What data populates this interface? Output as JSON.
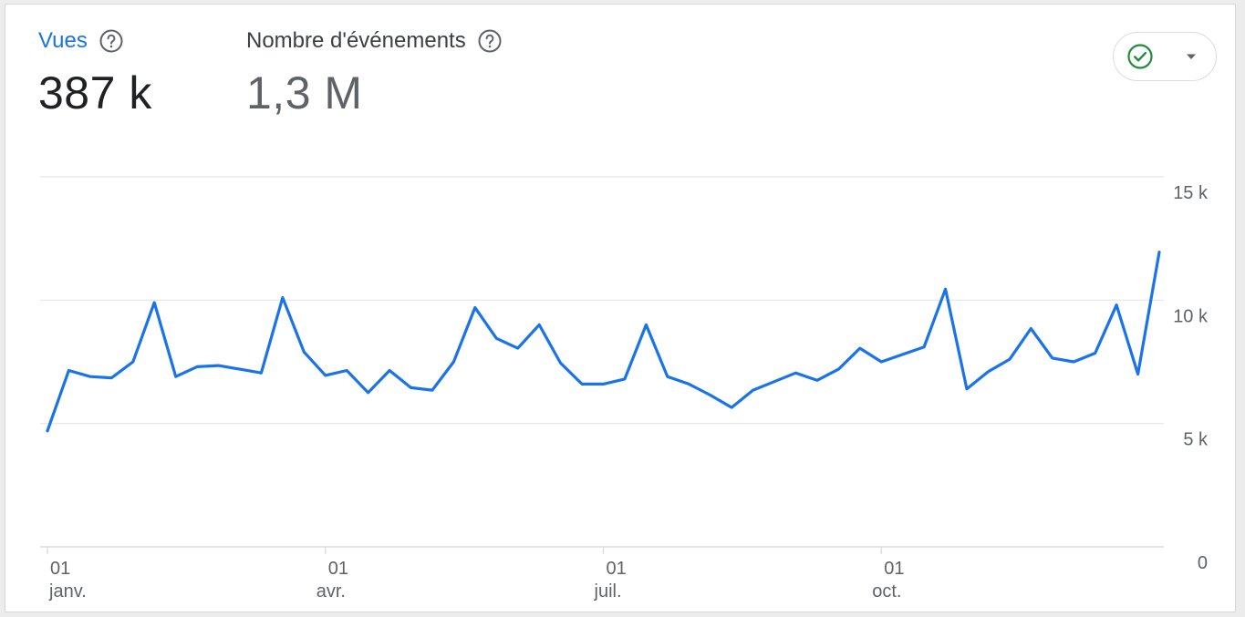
{
  "metrics": [
    {
      "label": "Vues",
      "value": "387 k",
      "active": true
    },
    {
      "label": "Nombre d'événements",
      "value": "1,3 M",
      "active": false
    }
  ],
  "status": {
    "icon": "check-circle-icon",
    "dropdown_icon": "dropdown-arrow-icon",
    "color": "#1e8e3e"
  },
  "chart_data": {
    "type": "line",
    "series": [
      {
        "color": "#1a73e8",
        "values": [
          4700,
          7150,
          6900,
          6850,
          7500,
          9900,
          6900,
          7300,
          7350,
          7200,
          7050,
          10100,
          7900,
          6950,
          7150,
          6250,
          7150,
          6450,
          6350,
          7500,
          9700,
          8450,
          8050,
          9000,
          7450,
          6600,
          6600,
          6800,
          9000,
          6900,
          6600,
          6150,
          5650,
          6350,
          6700,
          7050,
          6750,
          7200,
          8050,
          7500,
          7800,
          8100,
          10450,
          6400,
          7100,
          7600,
          8850,
          7650,
          7500,
          7850,
          9800,
          7000,
          11950
        ]
      }
    ],
    "y_ticks": [
      "15 k",
      "10 k",
      "5 k",
      "0"
    ],
    "y_tick_values": [
      15000,
      10000,
      5000,
      0
    ],
    "ylim": [
      0,
      15000
    ],
    "x_ticks": [
      {
        "day": "01",
        "month": "janv.",
        "index": 0
      },
      {
        "day": "01",
        "month": "avr.",
        "index": 13
      },
      {
        "day": "01",
        "month": "juil.",
        "index": 26
      },
      {
        "day": "01",
        "month": "oct.",
        "index": 39
      }
    ],
    "grid": true
  }
}
